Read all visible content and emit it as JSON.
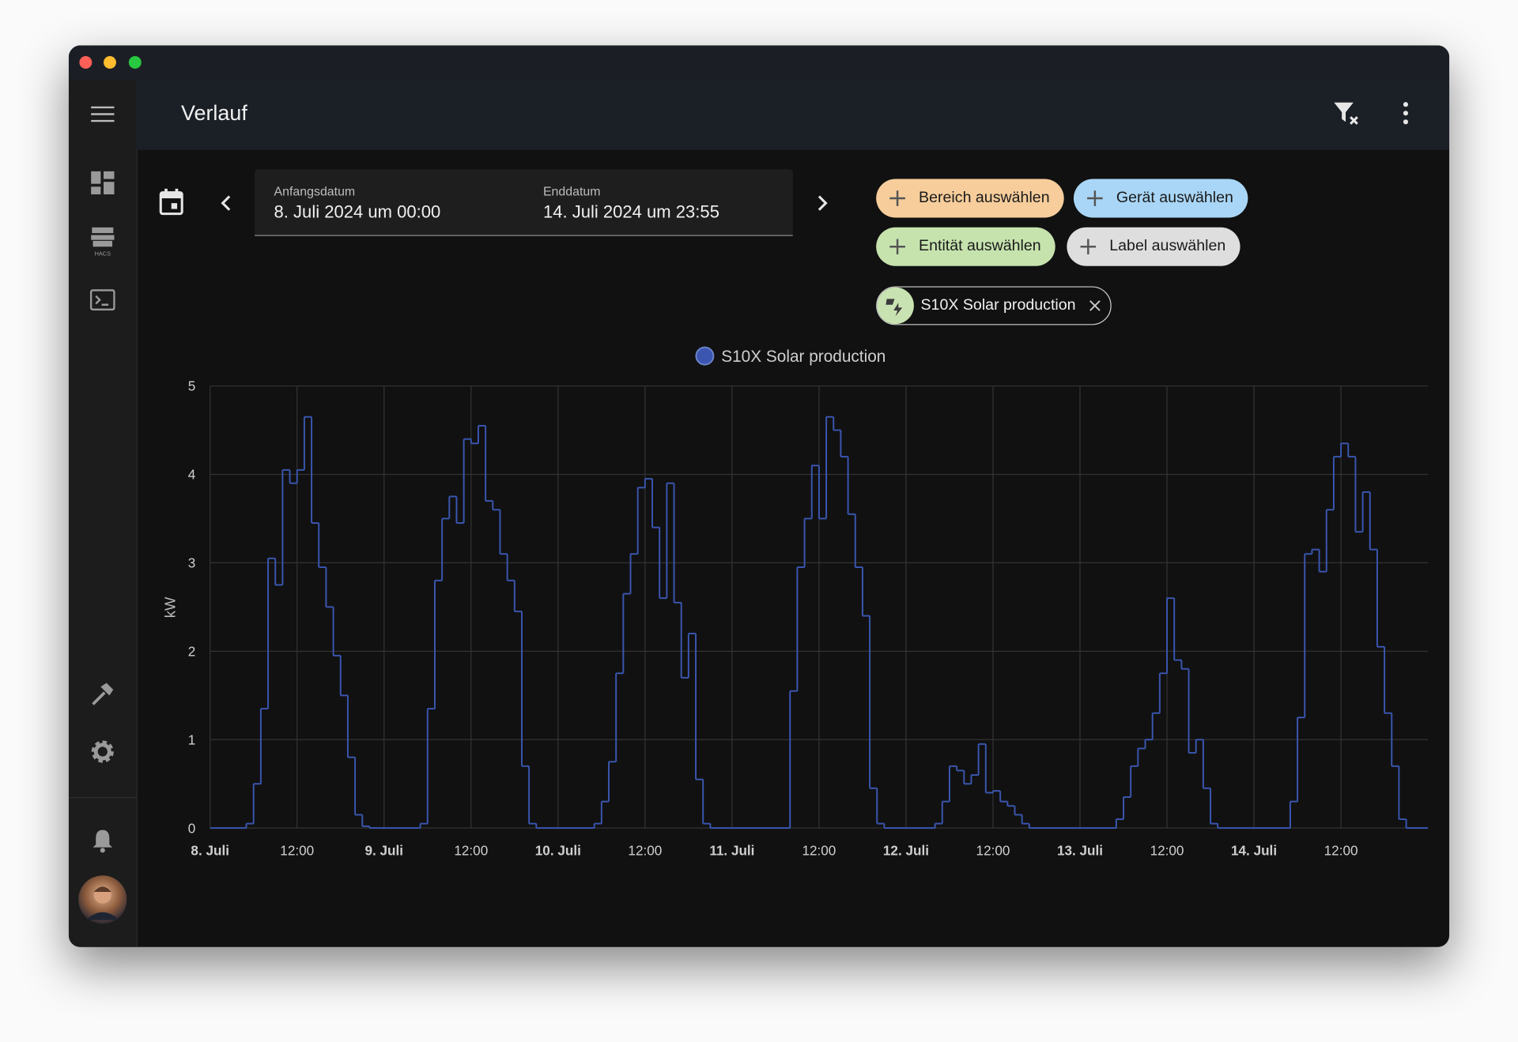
{
  "header": {
    "title": "Verlauf"
  },
  "date_range": {
    "start_label": "Anfangsdatum",
    "start": "8. Juli 2024 um 00:00",
    "end_label": "Enddatum",
    "end": "14. Juli 2024 um 23:55"
  },
  "filters": [
    "Bereich auswählen",
    "Gerät auswählen",
    "Entität auswählen",
    "Label auswählen"
  ],
  "selected": [
    "S10X Solar production"
  ],
  "chart_data": {
    "type": "line",
    "step": true,
    "y_label": "kW",
    "grid": true,
    "xlim": [
      0,
      168
    ],
    "ylim": [
      0,
      5
    ],
    "yticks": [
      0,
      1,
      2,
      3,
      4,
      5
    ],
    "xticks": [
      {
        "value": 0,
        "label": "8. Juli"
      },
      {
        "value": 12,
        "label": "12:00"
      },
      {
        "value": 24,
        "label": "9. Juli"
      },
      {
        "value": 36,
        "label": "12:00"
      },
      {
        "value": 48,
        "label": "10. Juli"
      },
      {
        "value": 60,
        "label": "12:00"
      },
      {
        "value": 72,
        "label": "11. Juli"
      },
      {
        "value": 84,
        "label": "12:00"
      },
      {
        "value": 96,
        "label": "12. Juli"
      },
      {
        "value": 108,
        "label": "12:00"
      },
      {
        "value": 120,
        "label": "13. Juli"
      },
      {
        "value": 132,
        "label": "12:00"
      },
      {
        "value": 144,
        "label": "14. Juli"
      },
      {
        "value": 156,
        "label": "12:00"
      }
    ],
    "x": [
      0,
      5,
      6,
      7,
      8,
      9,
      10,
      11,
      12,
      13,
      14,
      15,
      16,
      17,
      18,
      19,
      20,
      21,
      22,
      29,
      30,
      31,
      32,
      33,
      34,
      35,
      36,
      37,
      38,
      39,
      40,
      41,
      42,
      43,
      44,
      45,
      53,
      54,
      55,
      56,
      57,
      58,
      59,
      60,
      61,
      62,
      63,
      64,
      65,
      66,
      67,
      68,
      69,
      80,
      81,
      82,
      83,
      84,
      85,
      86,
      87,
      88,
      89,
      90,
      91,
      92,
      93,
      100,
      101,
      102,
      103,
      104,
      105,
      106,
      107,
      108,
      109,
      110,
      111,
      112,
      113,
      125,
      126,
      127,
      128,
      129,
      130,
      131,
      132,
      133,
      134,
      135,
      136,
      137,
      138,
      139,
      149,
      150,
      151,
      152,
      153,
      154,
      155,
      156,
      157,
      158,
      159,
      160,
      161,
      162,
      163,
      164,
      165
    ],
    "series": [
      {
        "name": "S10X Solar production",
        "color": "#3a56b0",
        "values": [
          0,
          0.05,
          0.5,
          1.35,
          3.05,
          2.75,
          4.05,
          3.9,
          4.05,
          4.65,
          3.45,
          2.95,
          2.5,
          1.95,
          1.5,
          0.8,
          0.15,
          0.02,
          0,
          0.05,
          1.35,
          2.8,
          3.5,
          3.75,
          3.45,
          4.4,
          4.35,
          4.55,
          3.7,
          3.6,
          3.1,
          2.8,
          2.45,
          0.7,
          0.05,
          0,
          0.05,
          0.3,
          0.75,
          1.75,
          2.65,
          3.1,
          3.85,
          3.95,
          3.4,
          2.6,
          3.9,
          2.55,
          1.7,
          2.2,
          0.55,
          0.05,
          0,
          1.55,
          2.95,
          3.5,
          4.1,
          3.5,
          4.65,
          4.5,
          4.2,
          3.55,
          2.95,
          2.4,
          0.45,
          0.05,
          0,
          0.05,
          0.3,
          0.7,
          0.65,
          0.5,
          0.6,
          0.95,
          0.4,
          0.42,
          0.3,
          0.25,
          0.15,
          0.05,
          0,
          0.1,
          0.35,
          0.7,
          0.9,
          1.0,
          1.3,
          1.75,
          2.6,
          1.9,
          1.8,
          0.85,
          1.0,
          0.45,
          0.05,
          0,
          0.3,
          1.25,
          3.1,
          3.15,
          2.9,
          3.6,
          4.2,
          4.35,
          4.2,
          3.35,
          3.8,
          3.15,
          2.05,
          1.3,
          0.7,
          0.1,
          0
        ]
      }
    ]
  }
}
